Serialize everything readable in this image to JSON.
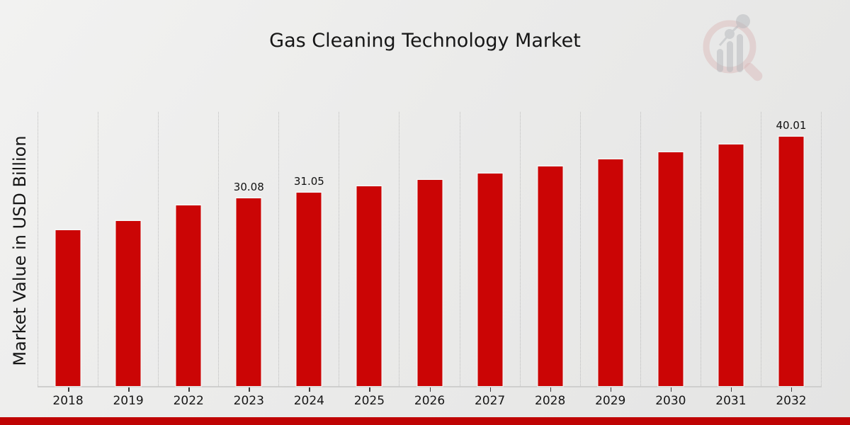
{
  "title": "Gas Cleaning Technology Market",
  "ylabel": "Market Value in USD Billion",
  "colors": {
    "bar": "#cb0505",
    "footer_band": "#bf0303",
    "gridline": "#bdbdbd",
    "axis_line": "#cfcfce",
    "text": "#161616"
  },
  "chart_data": {
    "type": "bar",
    "title": "Gas Cleaning Technology Market",
    "xlabel": "",
    "ylabel": "Market Value in USD Billion",
    "categories": [
      "2018",
      "2019",
      "2022",
      "2023",
      "2024",
      "2025",
      "2026",
      "2027",
      "2028",
      "2029",
      "2030",
      "2031",
      "2032"
    ],
    "values": [
      25.0,
      26.5,
      29.0,
      30.08,
      31.05,
      32.05,
      33.08,
      34.15,
      35.25,
      36.38,
      37.55,
      38.76,
      40.01
    ],
    "bar_labels": [
      "",
      "",
      "",
      "30.08",
      "31.05",
      "",
      "",
      "",
      "",
      "",
      "",
      "",
      "40.01"
    ],
    "ylim": [
      0,
      44
    ],
    "grid": "vertical-dotted-column-separators",
    "legend": "none",
    "bar_color": "#cb0505"
  }
}
